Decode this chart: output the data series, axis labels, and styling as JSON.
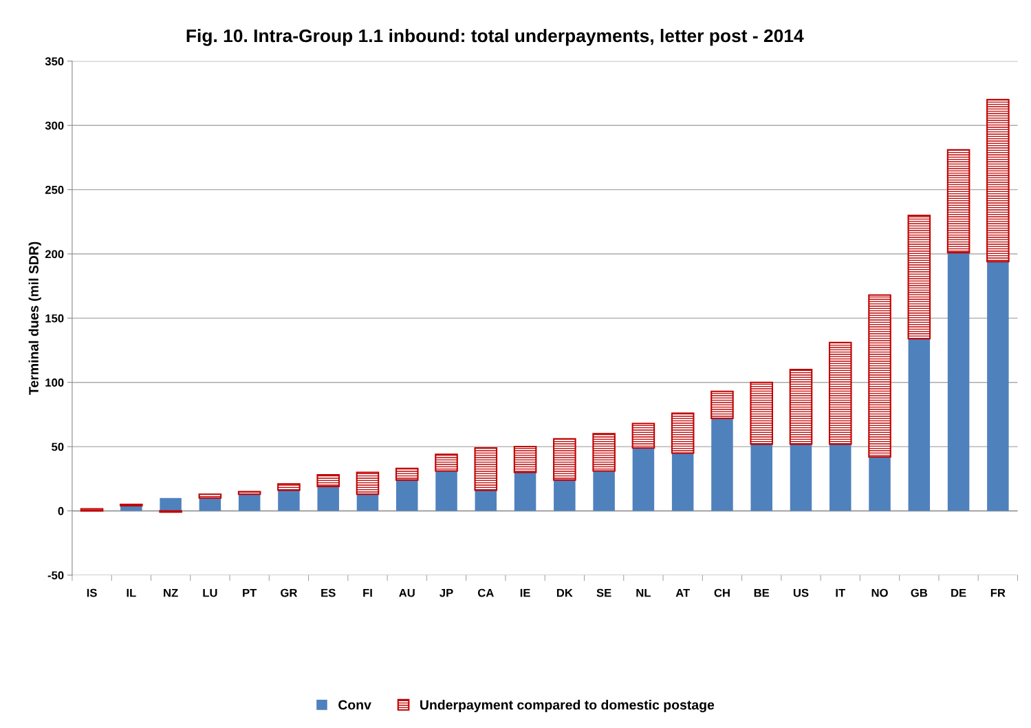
{
  "chart_data": {
    "type": "bar",
    "title": "Fig. 10. Intra-Group 1.1 inbound: total underpayments, letter post - 2014",
    "ylabel": "Terminal dues (mil SDR)",
    "categories": [
      "IS",
      "IL",
      "NZ",
      "LU",
      "PT",
      "GR",
      "ES",
      "FI",
      "AU",
      "JP",
      "CA",
      "IE",
      "DK",
      "SE",
      "NL",
      "AT",
      "CH",
      "BE",
      "US",
      "IT",
      "NO",
      "GB",
      "DE",
      "FR"
    ],
    "series": [
      {
        "name": "Conv",
        "color": "#4f81bd",
        "values": [
          0,
          4,
          10,
          10,
          13,
          16,
          19,
          13,
          24,
          31,
          16,
          30,
          24,
          31,
          49,
          45,
          72,
          52,
          52,
          52,
          42,
          134,
          201,
          194
        ]
      },
      {
        "name": "Underpayment compared to domestic postage",
        "color": "#c00000",
        "values": [
          1.5,
          1,
          -1,
          3,
          2,
          5,
          9,
          17,
          9,
          13,
          33,
          20,
          32,
          29,
          19,
          31,
          21,
          48,
          58,
          79,
          126,
          96,
          80,
          126
        ]
      }
    ],
    "stacked": true,
    "ylim": [
      -50,
      350
    ],
    "yticks": [
      -50,
      0,
      50,
      100,
      150,
      200,
      250,
      300,
      350
    ],
    "grid": "y",
    "legend": "bottom"
  }
}
